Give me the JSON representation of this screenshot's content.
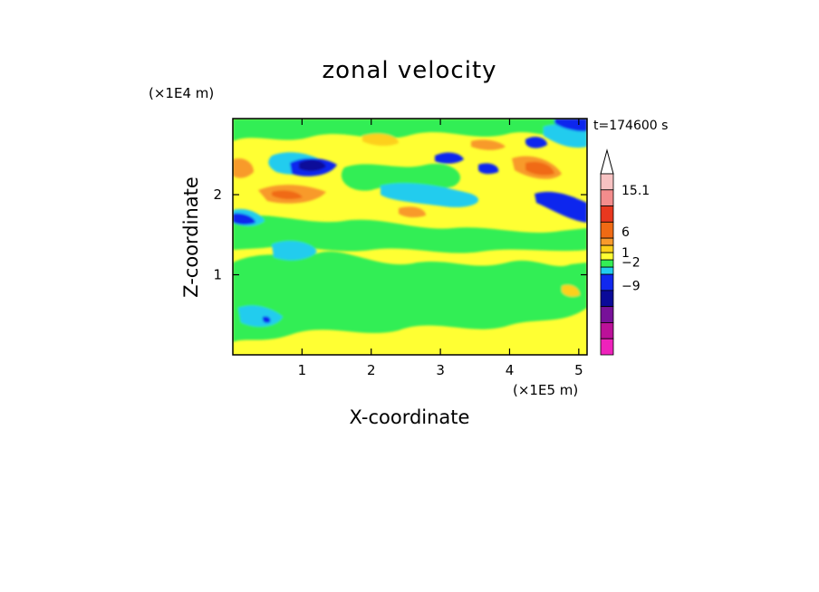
{
  "chart_data": {
    "type": "heatmap",
    "title": "zonal velocity",
    "xlabel": "X-coordinate",
    "ylabel": "Z-coordinate",
    "x_scale_label": "(×1E5 m)",
    "y_scale_label": "(×1E4 m)",
    "time_label": "t=174600 s",
    "xlim": [
      0,
      5.12
    ],
    "ylim": [
      0,
      2.95
    ],
    "x_ticks": [
      {
        "value": 1,
        "label": "1"
      },
      {
        "value": 2,
        "label": "2"
      },
      {
        "value": 3,
        "label": "3"
      },
      {
        "value": 4,
        "label": "4"
      },
      {
        "value": 5,
        "label": "5"
      }
    ],
    "y_ticks": [
      {
        "value": 1,
        "label": "1"
      },
      {
        "value": 2,
        "label": "2"
      }
    ],
    "colorbar": {
      "colors_top_to_bottom": [
        "#ffffff",
        "#f7c2c2",
        "#f38c8c",
        "#e8381f",
        "#f06a14",
        "#f89a2c",
        "#fdd01a",
        "#ffff33",
        "#33ee55",
        "#22ccee",
        "#1128ee",
        "#0a0a99",
        "#771199",
        "#bb1199",
        "#ee22bb"
      ],
      "labels": [
        {
          "text": "15.1",
          "slot": 1
        },
        {
          "text": "6",
          "slot": 3.6
        },
        {
          "text": "1",
          "slot": 6
        },
        {
          "text": "−2",
          "slot": 7.3
        },
        {
          "text": "−9",
          "slot": 9.7
        }
      ]
    },
    "grid": false,
    "legend": "right"
  }
}
